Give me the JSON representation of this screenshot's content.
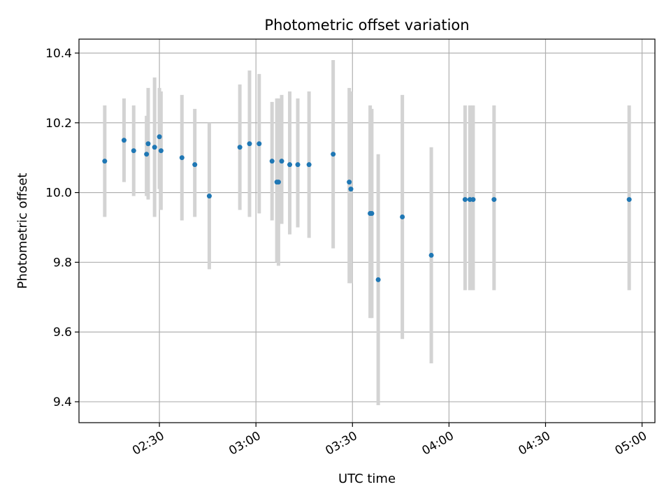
{
  "chart_data": {
    "type": "scatter",
    "title": "Photometric offset variation",
    "xlabel": "UTC time",
    "ylabel": "Photometric offset",
    "x_axis": "time",
    "xlim": [
      "02:05",
      "05:04"
    ],
    "ylim": [
      9.34,
      10.44
    ],
    "xticks": [
      "02:30",
      "03:00",
      "03:30",
      "04:00",
      "04:30",
      "05:00"
    ],
    "yticks": [
      9.4,
      9.6,
      9.8,
      10.0,
      10.2,
      10.4
    ],
    "yticklabels": [
      "9.4",
      "9.6",
      "9.8",
      "10.0",
      "10.2",
      "10.4"
    ],
    "grid": true,
    "legend": "none",
    "colors": {
      "point": "#1f77b4",
      "errorbar": "#d3d3d3",
      "grid": "#b0b0b0"
    },
    "series": [
      {
        "points": [
          {
            "x": "02:13",
            "y": 10.09,
            "lo": 9.93,
            "hi": 10.25
          },
          {
            "x": "02:19",
            "y": 10.15,
            "lo": 10.03,
            "hi": 10.27
          },
          {
            "x": "02:22",
            "y": 10.12,
            "lo": 9.99,
            "hi": 10.25
          },
          {
            "x": "02:26",
            "y": 10.11,
            "lo": 9.99,
            "hi": 10.22
          },
          {
            "x": "02:26.5",
            "y": 10.14,
            "lo": 9.98,
            "hi": 10.3
          },
          {
            "x": "02:28.5",
            "y": 10.13,
            "lo": 9.93,
            "hi": 10.33
          },
          {
            "x": "02:30",
            "y": 10.16,
            "lo": 10.01,
            "hi": 10.3
          },
          {
            "x": "02:30.5",
            "y": 10.12,
            "lo": 9.95,
            "hi": 10.29
          },
          {
            "x": "02:37",
            "y": 10.1,
            "lo": 9.92,
            "hi": 10.28
          },
          {
            "x": "02:41",
            "y": 10.08,
            "lo": 9.93,
            "hi": 10.24
          },
          {
            "x": "02:45.5",
            "y": 9.99,
            "lo": 9.78,
            "hi": 10.2
          },
          {
            "x": "02:55",
            "y": 10.13,
            "lo": 9.95,
            "hi": 10.31
          },
          {
            "x": "02:58",
            "y": 10.14,
            "lo": 9.93,
            "hi": 10.35
          },
          {
            "x": "03:01",
            "y": 10.14,
            "lo": 9.94,
            "hi": 10.34
          },
          {
            "x": "03:05",
            "y": 10.09,
            "lo": 9.92,
            "hi": 10.26
          },
          {
            "x": "03:06.5",
            "y": 10.03,
            "lo": 9.8,
            "hi": 10.27
          },
          {
            "x": "03:07",
            "y": 10.03,
            "lo": 9.79,
            "hi": 10.27
          },
          {
            "x": "03:08",
            "y": 10.09,
            "lo": 9.91,
            "hi": 10.28
          },
          {
            "x": "03:10.5",
            "y": 10.08,
            "lo": 9.88,
            "hi": 10.29
          },
          {
            "x": "03:13",
            "y": 10.08,
            "lo": 9.9,
            "hi": 10.27
          },
          {
            "x": "03:16.5",
            "y": 10.08,
            "lo": 9.87,
            "hi": 10.29
          },
          {
            "x": "03:24",
            "y": 10.11,
            "lo": 9.84,
            "hi": 10.38
          },
          {
            "x": "03:29",
            "y": 10.03,
            "lo": 9.74,
            "hi": 10.3
          },
          {
            "x": "03:29.5",
            "y": 10.01,
            "lo": 9.74,
            "hi": 10.29
          },
          {
            "x": "03:35.5",
            "y": 9.94,
            "lo": 9.64,
            "hi": 10.25
          },
          {
            "x": "03:36",
            "y": 9.94,
            "lo": 9.64,
            "hi": 10.24
          },
          {
            "x": "03:38",
            "y": 9.75,
            "lo": 9.39,
            "hi": 10.11
          },
          {
            "x": "03:45.5",
            "y": 9.93,
            "lo": 9.58,
            "hi": 10.28
          },
          {
            "x": "03:54.5",
            "y": 9.82,
            "lo": 9.51,
            "hi": 10.13
          },
          {
            "x": "04:05",
            "y": 9.98,
            "lo": 9.72,
            "hi": 10.25
          },
          {
            "x": "04:06.5",
            "y": 9.98,
            "lo": 9.72,
            "hi": 10.25
          },
          {
            "x": "04:07.5",
            "y": 9.98,
            "lo": 9.72,
            "hi": 10.25
          },
          {
            "x": "04:14",
            "y": 9.98,
            "lo": 9.72,
            "hi": 10.25
          },
          {
            "x": "04:56",
            "y": 9.98,
            "lo": 9.72,
            "hi": 10.25
          }
        ]
      }
    ]
  }
}
